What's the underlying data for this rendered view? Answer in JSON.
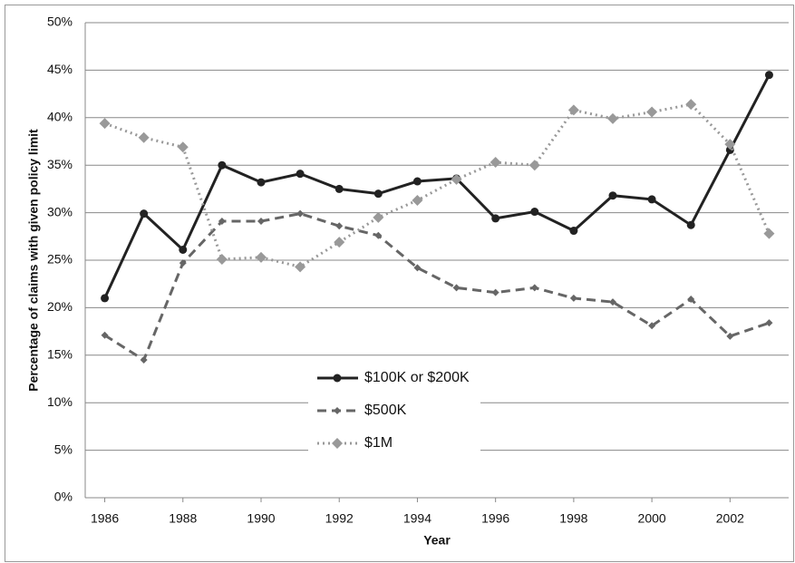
{
  "chart_data": {
    "type": "line",
    "x_label": "Year",
    "y_label": "Percentage of claims with given policy limit",
    "x": [
      1986,
      1987,
      1988,
      1989,
      1990,
      1991,
      1992,
      1993,
      1994,
      1995,
      1996,
      1997,
      1998,
      1999,
      2000,
      2001,
      2002,
      2003
    ],
    "xlim": [
      1985.5,
      2003.5
    ],
    "xticks": [
      1986,
      1988,
      1990,
      1992,
      1994,
      1996,
      1998,
      2000,
      2002
    ],
    "ylim": [
      0,
      50
    ],
    "yticks": [
      {
        "value": 0,
        "label": "0%"
      },
      {
        "value": 5,
        "label": "5%"
      },
      {
        "value": 10,
        "label": "10%"
      },
      {
        "value": 15,
        "label": "15%"
      },
      {
        "value": 20,
        "label": "20%"
      },
      {
        "value": 25,
        "label": "25%"
      },
      {
        "value": 30,
        "label": "30%"
      },
      {
        "value": 35,
        "label": "35%"
      },
      {
        "value": 40,
        "label": "40%"
      },
      {
        "value": 45,
        "label": "45%"
      },
      {
        "value": 50,
        "label": "50%"
      }
    ],
    "grid": true,
    "series": [
      {
        "name": "$100K or $200K",
        "color": "#222222",
        "style": "solid",
        "marker": "circle",
        "values": [
          21.0,
          29.9,
          26.1,
          35.0,
          33.2,
          34.1,
          32.5,
          32.0,
          33.3,
          33.6,
          29.4,
          30.1,
          28.1,
          31.8,
          31.4,
          28.7,
          36.6,
          44.5
        ]
      },
      {
        "name": "$500K",
        "color": "#666666",
        "style": "dashed",
        "marker": "small-diamond",
        "values": [
          17.1,
          14.5,
          24.7,
          29.1,
          29.1,
          29.9,
          28.6,
          27.6,
          24.2,
          22.1,
          21.6,
          22.1,
          21.0,
          20.6,
          18.1,
          20.9,
          17.0,
          18.4
        ]
      },
      {
        "name": "$1M",
        "color": "#999999",
        "style": "dotted",
        "marker": "diamond",
        "values": [
          39.4,
          37.9,
          36.9,
          25.1,
          25.3,
          24.3,
          26.9,
          29.5,
          31.3,
          33.5,
          35.3,
          35.0,
          40.8,
          39.9,
          40.6,
          41.4,
          37.2,
          27.8
        ]
      }
    ]
  }
}
